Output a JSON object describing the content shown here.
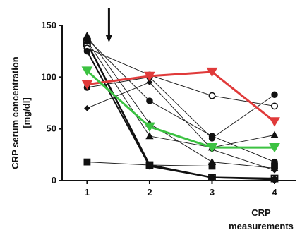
{
  "chart_data": {
    "type": "line",
    "title": "",
    "ylabel_line1": "CRP  serum concentration",
    "ylabel_line2": "[mg/dl]",
    "xlabel_line1": "CRP",
    "xlabel_line2": "measurements",
    "x_ticks": [
      "1",
      "2",
      "3",
      "4"
    ],
    "y_ticks": [
      "0",
      "50",
      "100",
      "150"
    ],
    "ylim": [
      0,
      150
    ],
    "xlim": [
      0.6,
      4.35
    ],
    "grid": false,
    "legend": "none",
    "annotation": {
      "type": "arrow-down",
      "x": 1.35
    },
    "series": [
      {
        "marker": "triangle",
        "fill": "#111111",
        "color": "#222222",
        "width": 1,
        "values": [
          140,
          55,
          18,
          12
        ]
      },
      {
        "marker": "square-open",
        "fill": "#ffffff",
        "color": "#111111",
        "width": 2.5,
        "values": [
          133,
          15,
          3,
          2
        ]
      },
      {
        "marker": "circle",
        "fill": "#111111",
        "color": "#222222",
        "width": 1,
        "values": [
          137,
          77,
          43,
          18
        ]
      },
      {
        "marker": "circle-open",
        "fill": "#ffffff",
        "color": "#222222",
        "width": 1,
        "values": [
          128,
          102,
          82,
          72
        ]
      },
      {
        "marker": "circle",
        "fill": "#111111",
        "color": "#111111",
        "width": 2,
        "values": [
          125,
          14,
          3,
          1
        ]
      },
      {
        "marker": "triangle",
        "fill": "#111111",
        "color": "#222222",
        "width": 1,
        "values": [
          135,
          43,
          32,
          44
        ]
      },
      {
        "marker": "circle",
        "fill": "#111111",
        "color": "#222222",
        "width": 1,
        "values": [
          90,
          100,
          41,
          83
        ]
      },
      {
        "marker": "diamond",
        "fill": "#111111",
        "color": "#222222",
        "width": 1,
        "values": [
          70,
          95,
          30,
          10
        ]
      },
      {
        "marker": "square",
        "fill": "#111111",
        "color": "#222222",
        "width": 1,
        "values": [
          18,
          15,
          14,
          14
        ]
      },
      {
        "marker": "inverted-triangle",
        "fill": "#e03a3a",
        "color": "#e03a3a",
        "width": 3,
        "values": [
          93,
          101,
          105,
          57
        ]
      },
      {
        "marker": "inverted-triangle",
        "fill": "#3cc242",
        "color": "#3cc242",
        "width": 3,
        "values": [
          106,
          52,
          32,
          32
        ]
      }
    ]
  }
}
